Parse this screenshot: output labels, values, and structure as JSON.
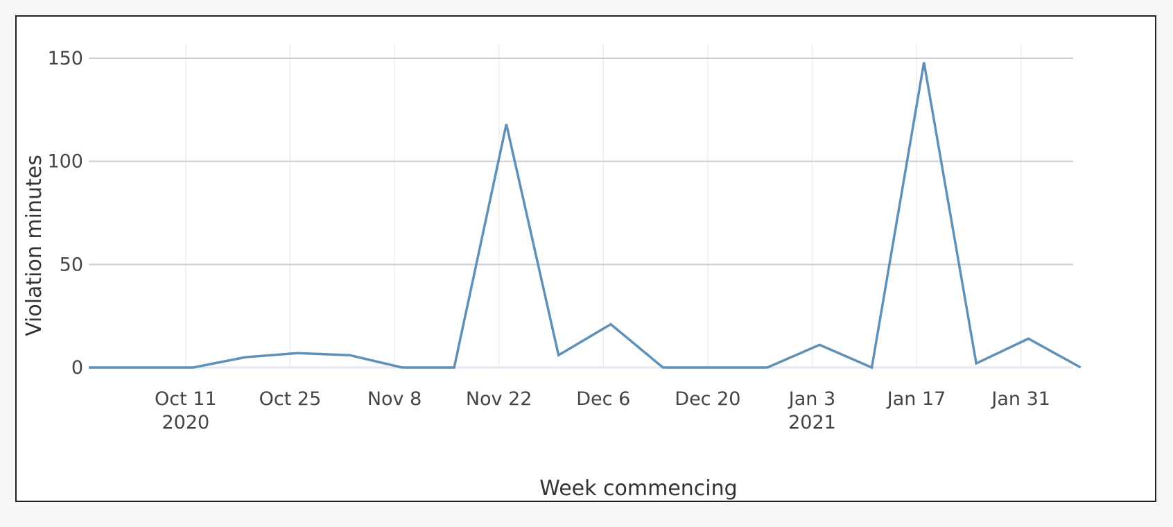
{
  "chart_data": {
    "type": "line",
    "title": "",
    "xlabel": "Week commencing",
    "ylabel": "Violation minutes",
    "x_tick_labels": [
      {
        "date": "2020-10-11",
        "line1": "Oct 11",
        "line2": "2020"
      },
      {
        "date": "2020-10-25",
        "line1": "Oct 25",
        "line2": ""
      },
      {
        "date": "2020-11-08",
        "line1": "Nov 8",
        "line2": ""
      },
      {
        "date": "2020-11-22",
        "line1": "Nov 22",
        "line2": ""
      },
      {
        "date": "2020-12-06",
        "line1": "Dec 6",
        "line2": ""
      },
      {
        "date": "2020-12-20",
        "line1": "Dec 20",
        "line2": ""
      },
      {
        "date": "2021-01-03",
        "line1": "Jan 3",
        "line2": "2021"
      },
      {
        "date": "2021-01-17",
        "line1": "Jan 17",
        "line2": ""
      },
      {
        "date": "2021-01-31",
        "line1": "Jan 31",
        "line2": ""
      }
    ],
    "y_ticks": [
      0,
      50,
      100,
      150
    ],
    "xlim": [
      "2020-09-28",
      "2021-02-07"
    ],
    "ylim": [
      0,
      150
    ],
    "grid": true,
    "series": [
      {
        "name": "",
        "color": "#5f91b8",
        "x": [
          "2020-09-28",
          "2020-10-05",
          "2020-10-12",
          "2020-10-19",
          "2020-10-26",
          "2020-11-02",
          "2020-11-09",
          "2020-11-16",
          "2020-11-23",
          "2020-11-30",
          "2020-12-07",
          "2020-12-14",
          "2020-12-21",
          "2020-12-28",
          "2021-01-04",
          "2021-01-11",
          "2021-01-18",
          "2021-01-25",
          "2021-02-01",
          "2021-02-08"
        ],
        "y": [
          0,
          0,
          0,
          5,
          7,
          6,
          0,
          0,
          118,
          6,
          21,
          0,
          0,
          0,
          11,
          0,
          148,
          2,
          14,
          0
        ]
      }
    ]
  }
}
